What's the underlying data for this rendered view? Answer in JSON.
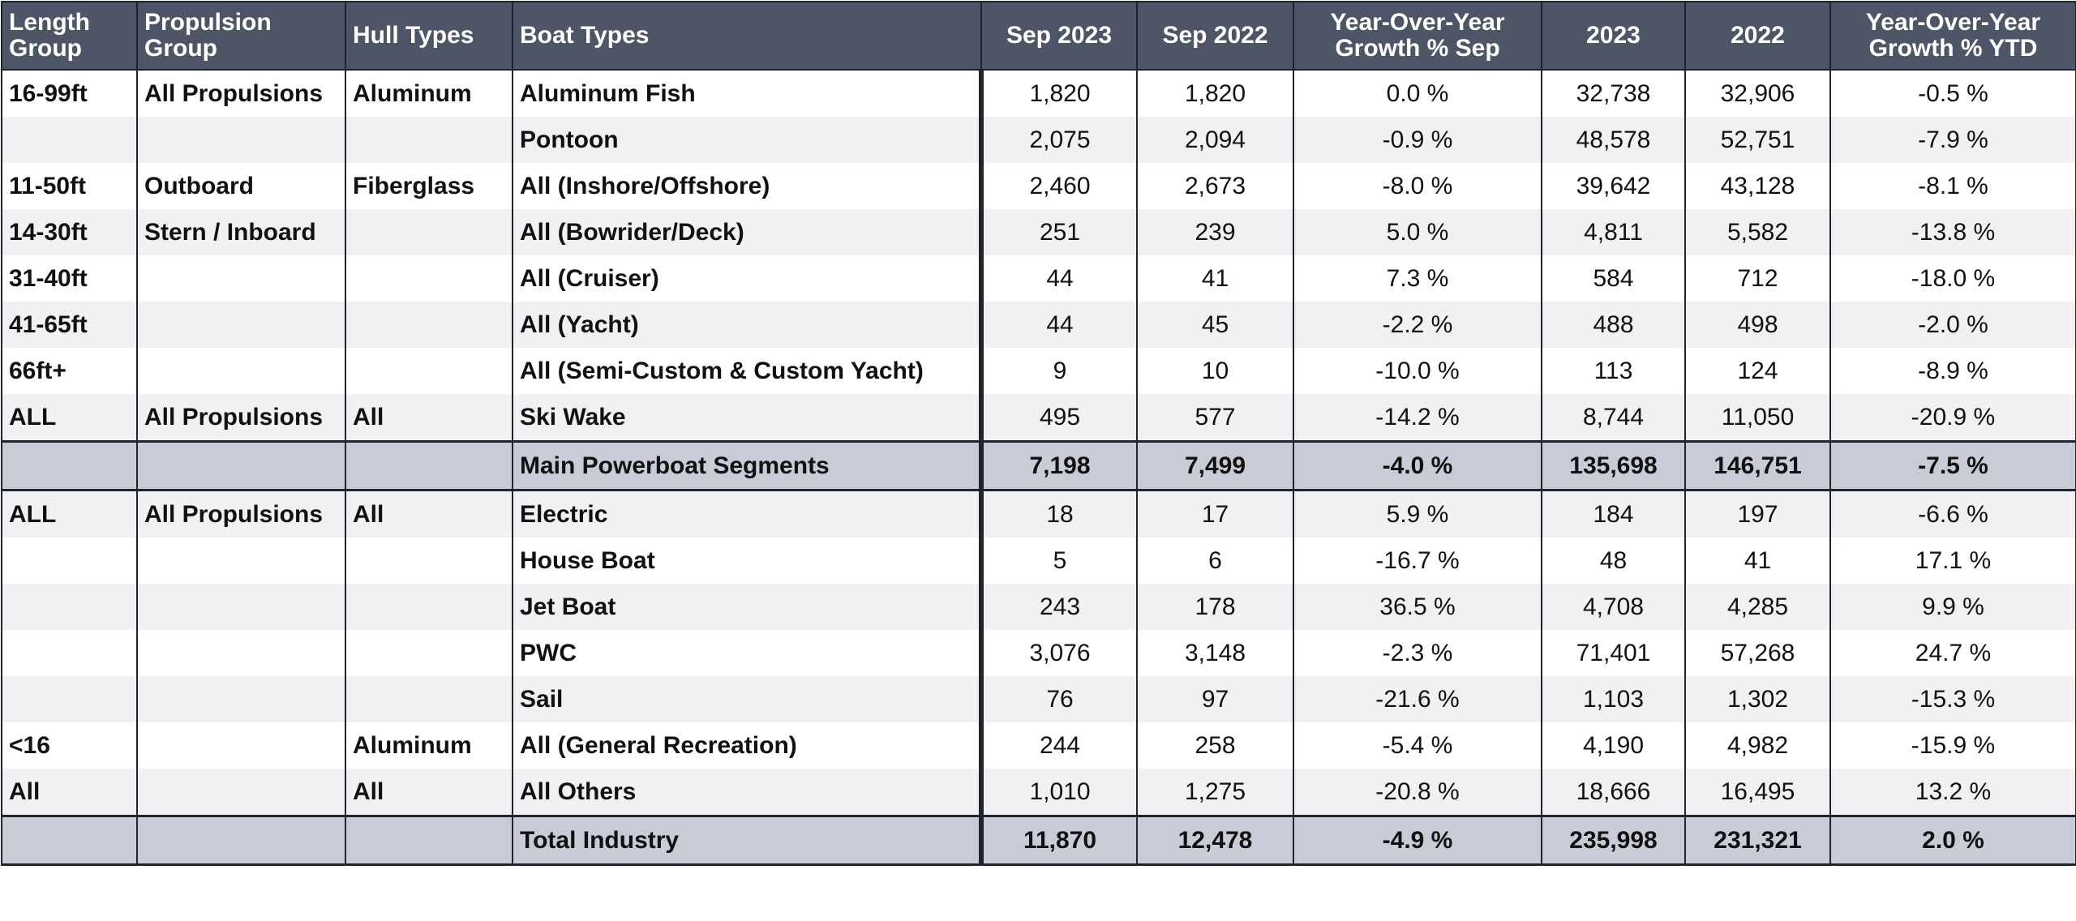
{
  "chart_data": {
    "type": "table",
    "columns": [
      "Length\nGroup",
      "Propulsion\nGroup",
      "Hull Types",
      "Boat Types",
      "Sep 2023",
      "Sep 2022",
      "Year-Over-Year\nGrowth % Sep",
      "2023",
      "2022",
      "Year-Over-Year\nGrowth % YTD"
    ],
    "rows": [
      [
        "16-99ft",
        "All Propulsions",
        "Aluminum",
        "Aluminum Fish",
        "1,820",
        "1,820",
        "0.0 %",
        "32,738",
        "32,906",
        "-0.5 %"
      ],
      [
        "",
        "",
        "",
        "Pontoon",
        "2,075",
        "2,094",
        "-0.9 %",
        "48,578",
        "52,751",
        "-7.9 %"
      ],
      [
        "11-50ft",
        "Outboard",
        "Fiberglass",
        "All (Inshore/Offshore)",
        "2,460",
        "2,673",
        "-8.0 %",
        "39,642",
        "43,128",
        "-8.1 %"
      ],
      [
        "14-30ft",
        "Stern / Inboard",
        "",
        "All (Bowrider/Deck)",
        "251",
        "239",
        "5.0 %",
        "4,811",
        "5,582",
        "-13.8 %"
      ],
      [
        "31-40ft",
        "",
        "",
        "All (Cruiser)",
        "44",
        "41",
        "7.3 %",
        "584",
        "712",
        "-18.0 %"
      ],
      [
        "41-65ft",
        "",
        "",
        "All (Yacht)",
        "44",
        "45",
        "-2.2 %",
        "488",
        "498",
        "-2.0 %"
      ],
      [
        "66ft+",
        "",
        "",
        "All (Semi-Custom & Custom Yacht)",
        "9",
        "10",
        "-10.0 %",
        "113",
        "124",
        "-8.9 %"
      ],
      [
        "ALL",
        "All Propulsions",
        "All",
        "Ski Wake",
        "495",
        "577",
        "-14.2 %",
        "8,744",
        "11,050",
        "-20.9 %"
      ],
      [
        "",
        "",
        "",
        "Main Powerboat Segments",
        "7,198",
        "7,499",
        "-4.0 %",
        "135,698",
        "146,751",
        "-7.5 %"
      ],
      [
        "ALL",
        "All Propulsions",
        "All",
        "Electric",
        "18",
        "17",
        "5.9 %",
        "184",
        "197",
        "-6.6 %"
      ],
      [
        "",
        "",
        "",
        "House Boat",
        "5",
        "6",
        "-16.7 %",
        "48",
        "41",
        "17.1 %"
      ],
      [
        "",
        "",
        "",
        "Jet Boat",
        "243",
        "178",
        "36.5 %",
        "4,708",
        "4,285",
        "9.9 %"
      ],
      [
        "",
        "",
        "",
        "PWC",
        "3,076",
        "3,148",
        "-2.3 %",
        "71,401",
        "57,268",
        "24.7 %"
      ],
      [
        "",
        "",
        "",
        "Sail",
        "76",
        "97",
        "-21.6 %",
        "1,103",
        "1,302",
        "-15.3 %"
      ],
      [
        "<16",
        "",
        "Aluminum",
        "All (General Recreation)",
        "244",
        "258",
        "-5.4 %",
        "4,190",
        "4,982",
        "-15.9 %"
      ],
      [
        "All",
        "",
        "All",
        "All Others",
        "1,010",
        "1,275",
        "-20.8 %",
        "18,666",
        "16,495",
        "13.2 %"
      ],
      [
        "",
        "",
        "",
        "Total Industry",
        "11,870",
        "12,478",
        "-4.9 %",
        "235,998",
        "231,321",
        "2.0 %"
      ]
    ],
    "subtotal_rows": [
      8,
      16
    ],
    "colors": {
      "header_bg": "#4e5566",
      "header_text": "#ffffff",
      "row_alt_bg": "#f1f1f3",
      "subtotal_bg": "#c9ccd6",
      "border": "#1f2430"
    }
  }
}
